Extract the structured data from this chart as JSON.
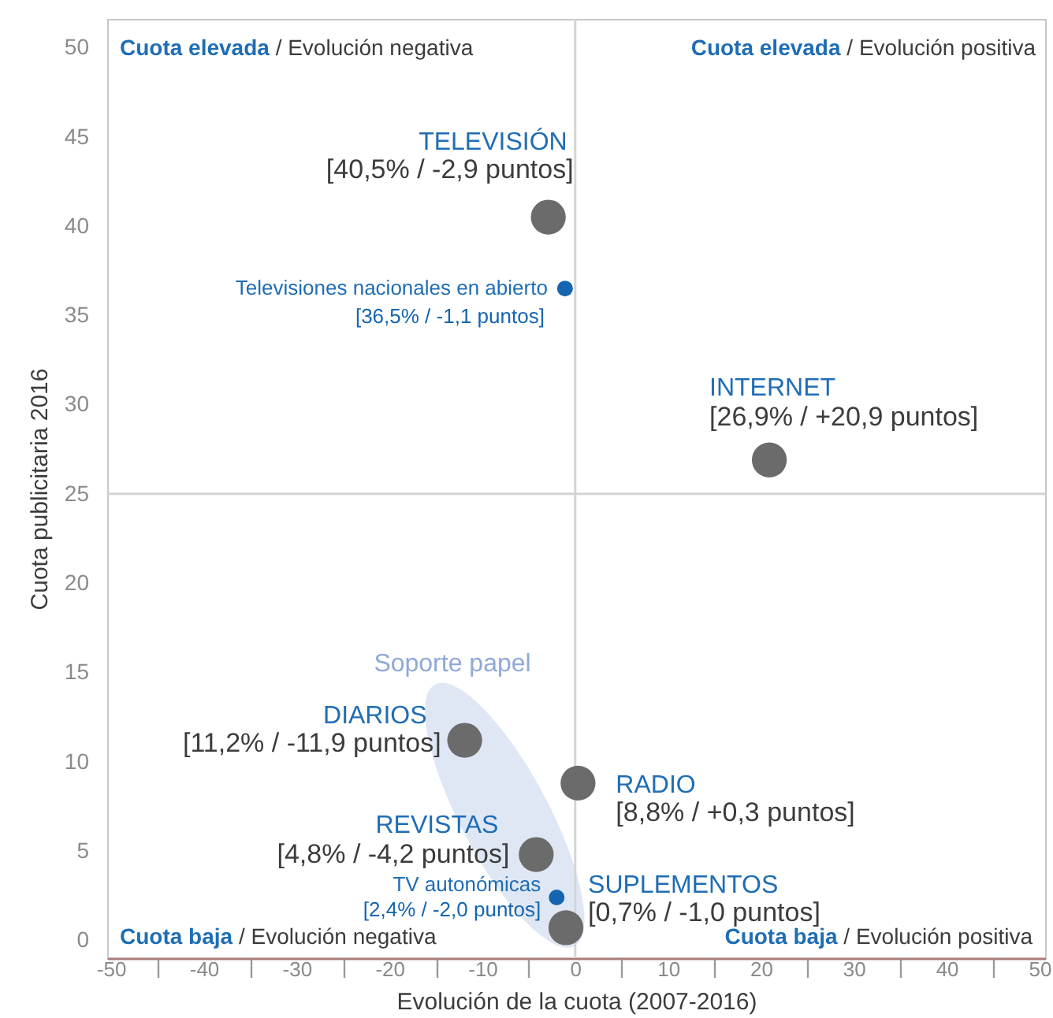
{
  "chart_data": {
    "type": "scatter",
    "xlabel": "Evolución de la cuota (2007-2016)",
    "ylabel": "Cuota publicitaria 2016",
    "xlim": [
      -50.4,
      50.6
    ],
    "ylim": [
      -1,
      51.6
    ],
    "xticks": [
      -50,
      {
        "value": -45,
        "label": null
      },
      -40,
      {
        "value": -35,
        "label": null
      },
      -30,
      {
        "value": -25,
        "label": null
      },
      -20,
      {
        "value": -15,
        "label": null
      },
      -10,
      {
        "value": -5,
        "label": null
      },
      0,
      {
        "value": 5,
        "label": null
      },
      10,
      {
        "value": 15,
        "label": null
      },
      20,
      {
        "value": 25,
        "label": null
      },
      30,
      {
        "value": 35,
        "label": null
      },
      40,
      {
        "value": 45,
        "label": null
      },
      50
    ],
    "yticks": [
      0,
      5,
      10,
      15,
      20,
      25,
      30,
      35,
      40,
      45,
      50
    ],
    "marker": "circle",
    "series": [
      {
        "name": "TELEVISIÓN",
        "color": "#6b6b6b",
        "x": [
          -2.9
        ],
        "values": [
          40.5
        ],
        "value_labels": [
          "[40,5% / -2,9 puntos]"
        ]
      },
      {
        "name": "Televisiones nacionales en abierto",
        "color": "#1565b0",
        "x": [
          -1.1
        ],
        "values": [
          36.5
        ],
        "value_labels": [
          "[36,5% / -1,1 puntos]"
        ]
      },
      {
        "name": "INTERNET",
        "color": "#6b6b6b",
        "x": [
          20.9
        ],
        "values": [
          26.9
        ],
        "value_labels": [
          "[26,9% / +20,9 puntos]"
        ]
      },
      {
        "name": "DIARIOS",
        "color": "#6b6b6b",
        "x": [
          -11.9
        ],
        "values": [
          11.2
        ],
        "value_labels": [
          "[11,2% / -11,9 puntos]"
        ]
      },
      {
        "name": "REVISTAS",
        "color": "#6b6b6b",
        "x": [
          -4.2
        ],
        "values": [
          4.8
        ],
        "value_labels": [
          "[4,8% / -4,2 puntos]"
        ]
      },
      {
        "name": "RADIO",
        "color": "#6b6b6b",
        "x": [
          0.3
        ],
        "values": [
          8.8
        ],
        "value_labels": [
          "[8,8% / +0,3 puntos]"
        ]
      },
      {
        "name": "SUPLEMENTOS",
        "color": "#6b6b6b",
        "x": [
          -1.0
        ],
        "values": [
          0.7
        ],
        "value_labels": [
          "[0,7% / -1,0 puntos]"
        ]
      },
      {
        "name": "TV autonómicas",
        "color": "#1565b0",
        "x": [
          -2.0
        ],
        "values": [
          2.4
        ],
        "value_labels": [
          "[2,4% / -2,0 puntos]"
        ]
      }
    ],
    "ref_lines": [
      {
        "axis": "x",
        "value": 0,
        "color": "#d4d4d4"
      },
      {
        "axis": "y",
        "value": 25,
        "color": "#d4d4d4"
      }
    ],
    "annotations": [
      "Cuota elevada / Evolución negativa",
      "Cuota elevada / Evolución positiva",
      "Cuota baja / Evolución negativa",
      "Cuota baja / Evolución positiva",
      "Soporte papel"
    ]
  }
}
